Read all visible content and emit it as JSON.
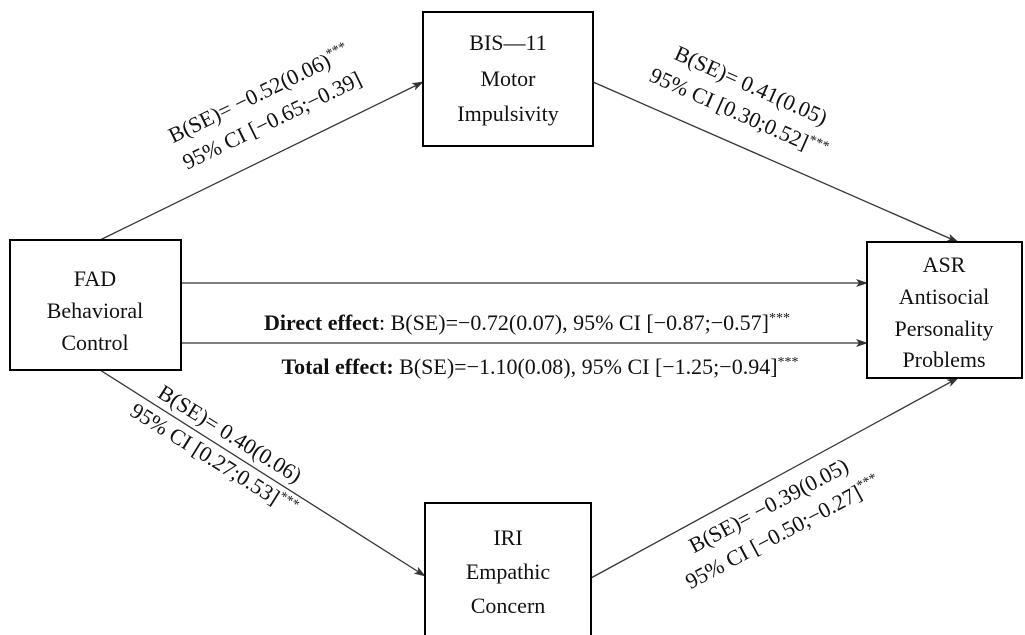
{
  "nodes": [
    {
      "lines": [
        "FAD",
        "Behavioral",
        "Control"
      ]
    },
    {
      "lines": [
        "BIS—11",
        "Motor",
        "Impulsivity"
      ]
    },
    {
      "lines": [
        "ASR",
        "Antisocial",
        "Personality",
        "Problems"
      ]
    },
    {
      "lines": [
        "IRI",
        "Empathic",
        "Concern"
      ]
    }
  ],
  "edges": [
    {
      "b": "B(SE)= −0.52(0.06)",
      "ci": "95% CI [−0.65;−0.39]",
      "sig": "***"
    },
    {
      "b": "B(SE)= 0.41(0.05)",
      "ci": "95% CI [0.30;0.52]",
      "sig": "***"
    },
    {
      "b": "B(SE)= 0.40(0.06)",
      "ci": "95% CI [0.27;0.53]",
      "sig": "***"
    },
    {
      "b": "B(SE)= −0.39(0.05)",
      "ci": "95% CI [−0.50;−0.27]",
      "sig": "***"
    }
  ],
  "direct": {
    "label": "Direct effect",
    "text": ": B(SE)=−0.72(0.07), 95% CI [−0.87;−0.57]",
    "sig": "***"
  },
  "total": {
    "label": "Total effect:",
    "text": " B(SE)=−1.10(0.08), 95% CI [−1.25;−0.94]",
    "sig": "***"
  }
}
